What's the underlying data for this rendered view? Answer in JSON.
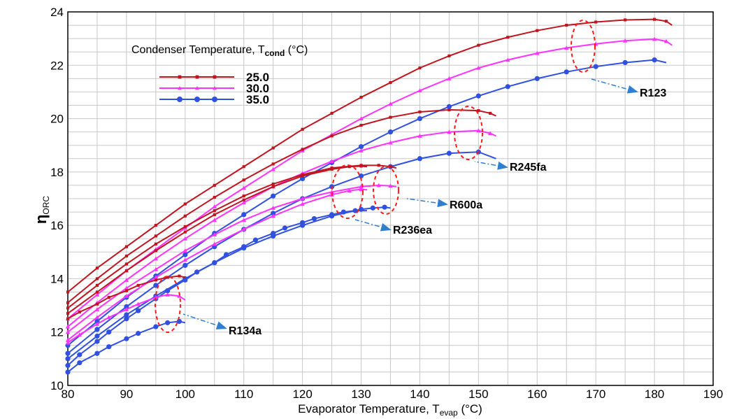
{
  "chart_data": {
    "type": "line",
    "xlabel": "Evaporator Temperature, T",
    "xlabel_sub": "evap",
    "xlabel_unit": " (°C)",
    "ylabel": "η",
    "ylabel_sub": "ORC",
    "xlim": [
      80,
      190
    ],
    "ylim": [
      10,
      24
    ],
    "x_ticks": [
      "80",
      "90",
      "100",
      "110",
      "120",
      "130",
      "140",
      "150",
      "160",
      "170",
      "180",
      "190"
    ],
    "y_ticks": [
      "10",
      "12",
      "14",
      "16",
      "18",
      "20",
      "22",
      "24"
    ],
    "grid": true,
    "legend": {
      "title": "Condenser Temperature, T",
      "title_sub": "cond",
      "title_unit": " (°C)",
      "placement": "top-left",
      "entries": [
        {
          "label": "25.0",
          "color": "#c0141e",
          "marker": "square"
        },
        {
          "label": "30.0",
          "color": "#ff33ff",
          "marker": "triangle"
        },
        {
          "label": "35.0",
          "color": "#3050e0",
          "marker": "circle"
        }
      ]
    },
    "annotations": [
      {
        "label": "R123",
        "near": [
          170,
          21.5
        ]
      },
      {
        "label": "R245fa",
        "near": [
          150,
          18.4
        ]
      },
      {
        "label": "R600a",
        "near": [
          139,
          16.9
        ]
      },
      {
        "label": "R236ea",
        "near": [
          130,
          16.2
        ]
      },
      {
        "label": "R134a",
        "near": [
          100,
          12.6
        ]
      }
    ],
    "series": [
      {
        "fluid": "R123",
        "cond": "25.0",
        "color": "#c0141e",
        "marker": "square",
        "x": [
          80,
          85,
          90,
          95,
          100,
          105,
          110,
          115,
          120,
          125,
          130,
          135,
          140,
          145,
          150,
          155,
          160,
          165,
          170,
          175,
          180,
          182,
          183
        ],
        "y": [
          13.5,
          14.4,
          15.2,
          16.0,
          16.8,
          17.5,
          18.2,
          18.9,
          19.6,
          20.2,
          20.8,
          21.35,
          21.9,
          22.35,
          22.75,
          23.05,
          23.3,
          23.5,
          23.62,
          23.7,
          23.72,
          23.65,
          23.5
        ]
      },
      {
        "fluid": "R123",
        "cond": "30.0",
        "color": "#ff33ff",
        "marker": "triangle",
        "x": [
          80,
          85,
          90,
          95,
          100,
          105,
          110,
          115,
          120,
          125,
          130,
          135,
          140,
          145,
          150,
          155,
          160,
          165,
          170,
          175,
          180,
          182,
          183
        ],
        "y": [
          12.5,
          13.4,
          14.3,
          15.1,
          15.9,
          16.7,
          17.4,
          18.1,
          18.8,
          19.4,
          20.0,
          20.55,
          21.05,
          21.5,
          21.9,
          22.2,
          22.45,
          22.65,
          22.8,
          22.92,
          22.98,
          22.9,
          22.75
        ]
      },
      {
        "fluid": "R123",
        "cond": "35.0",
        "color": "#3050e0",
        "marker": "circle",
        "x": [
          80,
          85,
          90,
          95,
          100,
          105,
          110,
          115,
          120,
          125,
          130,
          135,
          140,
          145,
          150,
          155,
          160,
          165,
          170,
          175,
          180,
          182
        ],
        "y": [
          11.5,
          12.4,
          13.3,
          14.1,
          14.9,
          15.7,
          16.4,
          17.1,
          17.75,
          18.35,
          18.95,
          19.5,
          20.0,
          20.45,
          20.85,
          21.2,
          21.5,
          21.75,
          21.95,
          22.1,
          22.2,
          22.1
        ]
      },
      {
        "fluid": "R245fa",
        "cond": "25.0",
        "color": "#c0141e",
        "marker": "square",
        "x": [
          80,
          85,
          90,
          95,
          100,
          105,
          110,
          115,
          120,
          125,
          130,
          135,
          140,
          145,
          150,
          152,
          153
        ],
        "y": [
          13.1,
          14.0,
          14.85,
          15.6,
          16.35,
          17.05,
          17.7,
          18.3,
          18.85,
          19.35,
          19.75,
          20.05,
          20.25,
          20.33,
          20.3,
          20.2,
          20.1
        ]
      },
      {
        "fluid": "R245fa",
        "cond": "30.0",
        "color": "#ff33ff",
        "marker": "triangle",
        "x": [
          80,
          85,
          90,
          95,
          100,
          105,
          110,
          115,
          120,
          125,
          130,
          135,
          140,
          145,
          150,
          152,
          153
        ],
        "y": [
          12.2,
          13.1,
          13.95,
          14.75,
          15.5,
          16.2,
          16.85,
          17.45,
          17.95,
          18.4,
          18.8,
          19.1,
          19.35,
          19.5,
          19.55,
          19.45,
          19.35
        ]
      },
      {
        "fluid": "R245fa",
        "cond": "35.0",
        "color": "#3050e0",
        "marker": "circle",
        "x": [
          80,
          85,
          90,
          95,
          100,
          105,
          110,
          115,
          120,
          125,
          130,
          135,
          140,
          145,
          150,
          153
        ],
        "y": [
          11.2,
          12.1,
          12.95,
          13.75,
          14.5,
          15.2,
          15.85,
          16.45,
          17.0,
          17.45,
          17.85,
          18.2,
          18.5,
          18.7,
          18.75,
          18.5
        ]
      },
      {
        "fluid": "R600a",
        "cond": "25.0",
        "color": "#c0141e",
        "marker": "square",
        "x": [
          80,
          85,
          90,
          95,
          100,
          105,
          110,
          115,
          120,
          125,
          130,
          133,
          135,
          136
        ],
        "y": [
          12.9,
          13.75,
          14.55,
          15.3,
          15.95,
          16.55,
          17.1,
          17.55,
          17.9,
          18.15,
          18.25,
          18.25,
          18.2,
          18.15
        ]
      },
      {
        "fluid": "R600a",
        "cond": "30.0",
        "color": "#ff33ff",
        "marker": "triangle",
        "x": [
          80,
          85,
          90,
          95,
          100,
          105,
          110,
          115,
          120,
          125,
          130,
          133,
          135,
          136
        ],
        "y": [
          12.0,
          12.85,
          13.65,
          14.35,
          15.05,
          15.65,
          16.2,
          16.65,
          17.0,
          17.25,
          17.45,
          17.5,
          17.48,
          17.45
        ]
      },
      {
        "fluid": "R600a",
        "cond": "35.0",
        "color": "#3050e0",
        "marker": "circle",
        "x": [
          80,
          85,
          90,
          95,
          100,
          105,
          110,
          115,
          120,
          125,
          130,
          132,
          134,
          135
        ],
        "y": [
          11.0,
          11.85,
          12.65,
          13.35,
          14.0,
          14.6,
          15.15,
          15.6,
          16.0,
          16.35,
          16.6,
          16.65,
          16.68,
          16.65
        ]
      },
      {
        "fluid": "R236ea",
        "cond": "25.0",
        "color": "#c0141e",
        "marker": "square",
        "x": [
          80,
          85,
          90,
          95,
          100,
          105,
          110,
          115,
          120,
          125,
          128,
          130,
          131
        ],
        "y": [
          12.7,
          13.5,
          14.3,
          15.05,
          15.75,
          16.4,
          16.95,
          17.45,
          17.85,
          18.1,
          18.2,
          18.22,
          18.2
        ]
      },
      {
        "fluid": "R236ea",
        "cond": "30.0",
        "color": "#ff33ff",
        "marker": "triangle",
        "x": [
          80,
          85,
          90,
          95,
          100,
          105,
          110,
          115,
          120,
          125,
          128,
          130,
          131
        ],
        "y": [
          11.7,
          12.55,
          13.35,
          14.05,
          14.7,
          15.3,
          15.85,
          16.35,
          16.8,
          17.15,
          17.3,
          17.35,
          17.33
        ]
      },
      {
        "fluid": "R236ea",
        "cond": "35.0",
        "color": "#3050e0",
        "marker": "circle",
        "x": [
          80,
          82,
          85,
          87,
          90,
          92,
          95,
          97,
          100,
          102,
          105,
          107,
          110,
          112,
          115,
          117,
          120,
          122,
          125,
          127,
          129,
          131
        ],
        "y": [
          10.75,
          11.15,
          11.65,
          12.0,
          12.5,
          12.8,
          13.25,
          13.55,
          13.95,
          14.25,
          14.6,
          14.9,
          15.2,
          15.45,
          15.7,
          15.9,
          16.1,
          16.25,
          16.4,
          16.5,
          16.55,
          16.55
        ]
      },
      {
        "fluid": "R134a",
        "cond": "25.0",
        "color": "#c0141e",
        "marker": "square",
        "x": [
          80,
          82,
          85,
          87,
          90,
          92,
          95,
          97,
          99,
          100
        ],
        "y": [
          12.5,
          12.75,
          13.05,
          13.3,
          13.55,
          13.75,
          13.95,
          14.05,
          14.1,
          14.05
        ]
      },
      {
        "fluid": "R134a",
        "cond": "30.0",
        "color": "#ff33ff",
        "marker": "triangle",
        "x": [
          80,
          82,
          85,
          87,
          90,
          92,
          95,
          97,
          99,
          100
        ],
        "y": [
          11.6,
          11.9,
          12.3,
          12.55,
          12.85,
          13.05,
          13.3,
          13.4,
          13.35,
          13.2
        ]
      },
      {
        "fluid": "R134a",
        "cond": "35.0",
        "color": "#3050e0",
        "marker": "circle",
        "x": [
          80,
          82,
          85,
          87,
          90,
          92,
          95,
          97,
          99,
          100
        ],
        "y": [
          10.5,
          10.85,
          11.2,
          11.45,
          11.75,
          11.95,
          12.2,
          12.35,
          12.4,
          12.35
        ]
      }
    ]
  }
}
